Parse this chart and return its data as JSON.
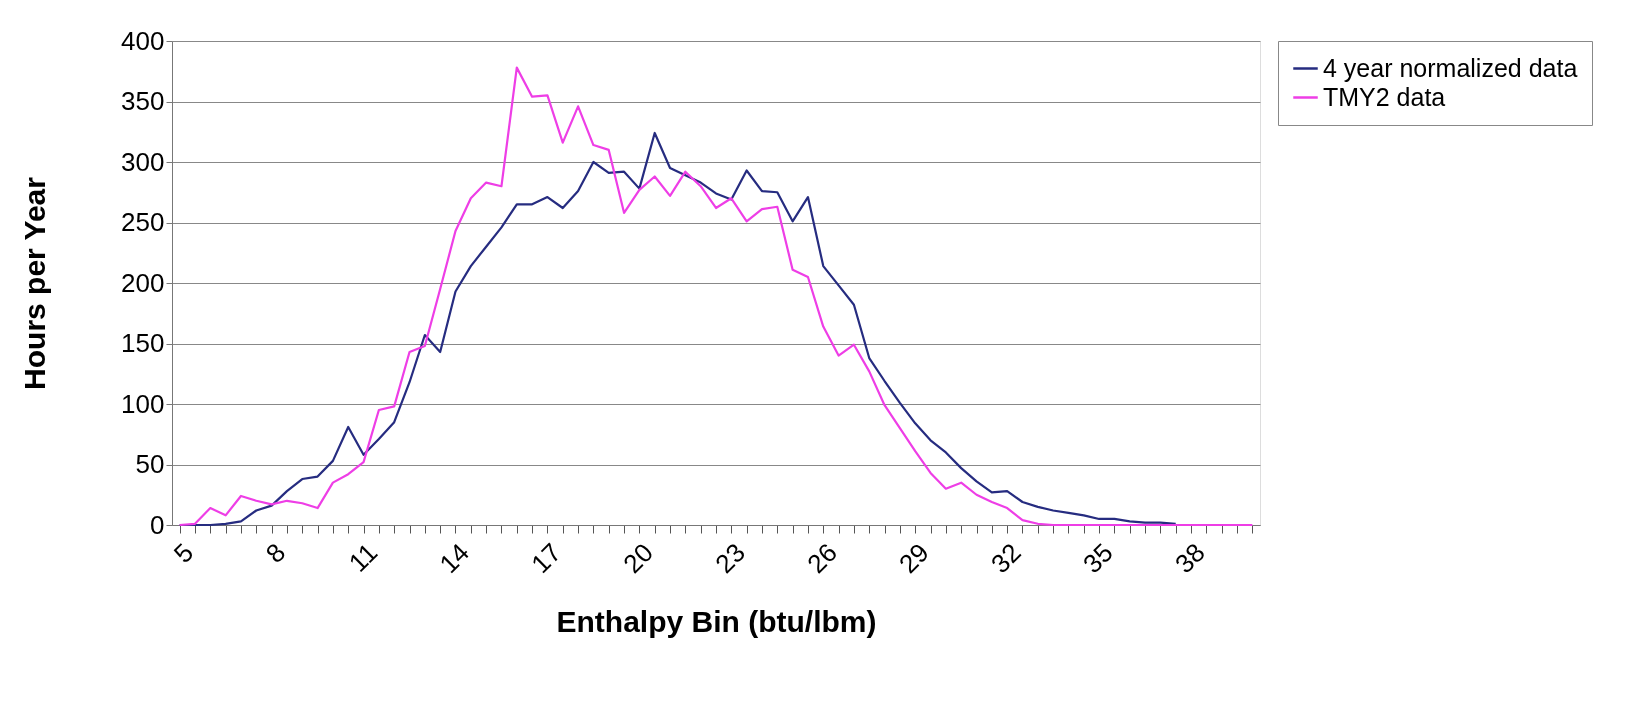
{
  "chart_data": {
    "type": "line",
    "xlabel": "Enthalpy Bin (btu/lbm)",
    "ylabel": "Hours per Year",
    "categories": [
      "5",
      null,
      null,
      null,
      null,
      null,
      "8",
      null,
      null,
      null,
      null,
      null,
      "11",
      null,
      null,
      null,
      null,
      null,
      "14",
      null,
      null,
      null,
      null,
      null,
      "17",
      null,
      null,
      null,
      null,
      null,
      "20",
      null,
      null,
      null,
      null,
      null,
      "23",
      null,
      null,
      null,
      null,
      null,
      "26",
      null,
      null,
      null,
      null,
      null,
      "29",
      null,
      null,
      null,
      null,
      null,
      "32",
      null,
      null,
      null,
      null,
      null,
      "35",
      null,
      null,
      null,
      null,
      null,
      "38",
      null,
      null,
      null,
      null
    ],
    "series": [
      {
        "name": "4 year normalized data",
        "color": "#262c80",
        "values": [
          0,
          0,
          0,
          1,
          3,
          12,
          16,
          28,
          38,
          40,
          53,
          81,
          58,
          71,
          85,
          118,
          157,
          143,
          193,
          214,
          230,
          246,
          265,
          265,
          271,
          262,
          276,
          300,
          291,
          292,
          278,
          324,
          295,
          289,
          283,
          274,
          269,
          293,
          276,
          275,
          251,
          271,
          214,
          198,
          182,
          138,
          119,
          101,
          84,
          70,
          60,
          47,
          36,
          27,
          28,
          19,
          15,
          12,
          10,
          8,
          5,
          5,
          3,
          2,
          2,
          1,
          null,
          null,
          null,
          null,
          null
        ]
      },
      {
        "name": "TMY2 data",
        "color": "#ee3ee6",
        "values": [
          0,
          1,
          14,
          8,
          24,
          20,
          17,
          20,
          18,
          14,
          35,
          42,
          52,
          95,
          98,
          143,
          148,
          195,
          243,
          270,
          283,
          280,
          378,
          354,
          355,
          316,
          346,
          314,
          310,
          258,
          277,
          288,
          272,
          292,
          280,
          262,
          270,
          251,
          261,
          263,
          211,
          205,
          164,
          140,
          149,
          127,
          99,
          80,
          61,
          43,
          30,
          35,
          25,
          19,
          14,
          4,
          1,
          0,
          0,
          0,
          0,
          0,
          0,
          0,
          0,
          0,
          0,
          0,
          0,
          0,
          0
        ]
      }
    ],
    "ylim": [
      0,
      400
    ],
    "yticks": [
      0,
      50,
      100,
      150,
      200,
      250,
      300,
      350,
      400
    ],
    "grid": "y",
    "legend": "right"
  }
}
